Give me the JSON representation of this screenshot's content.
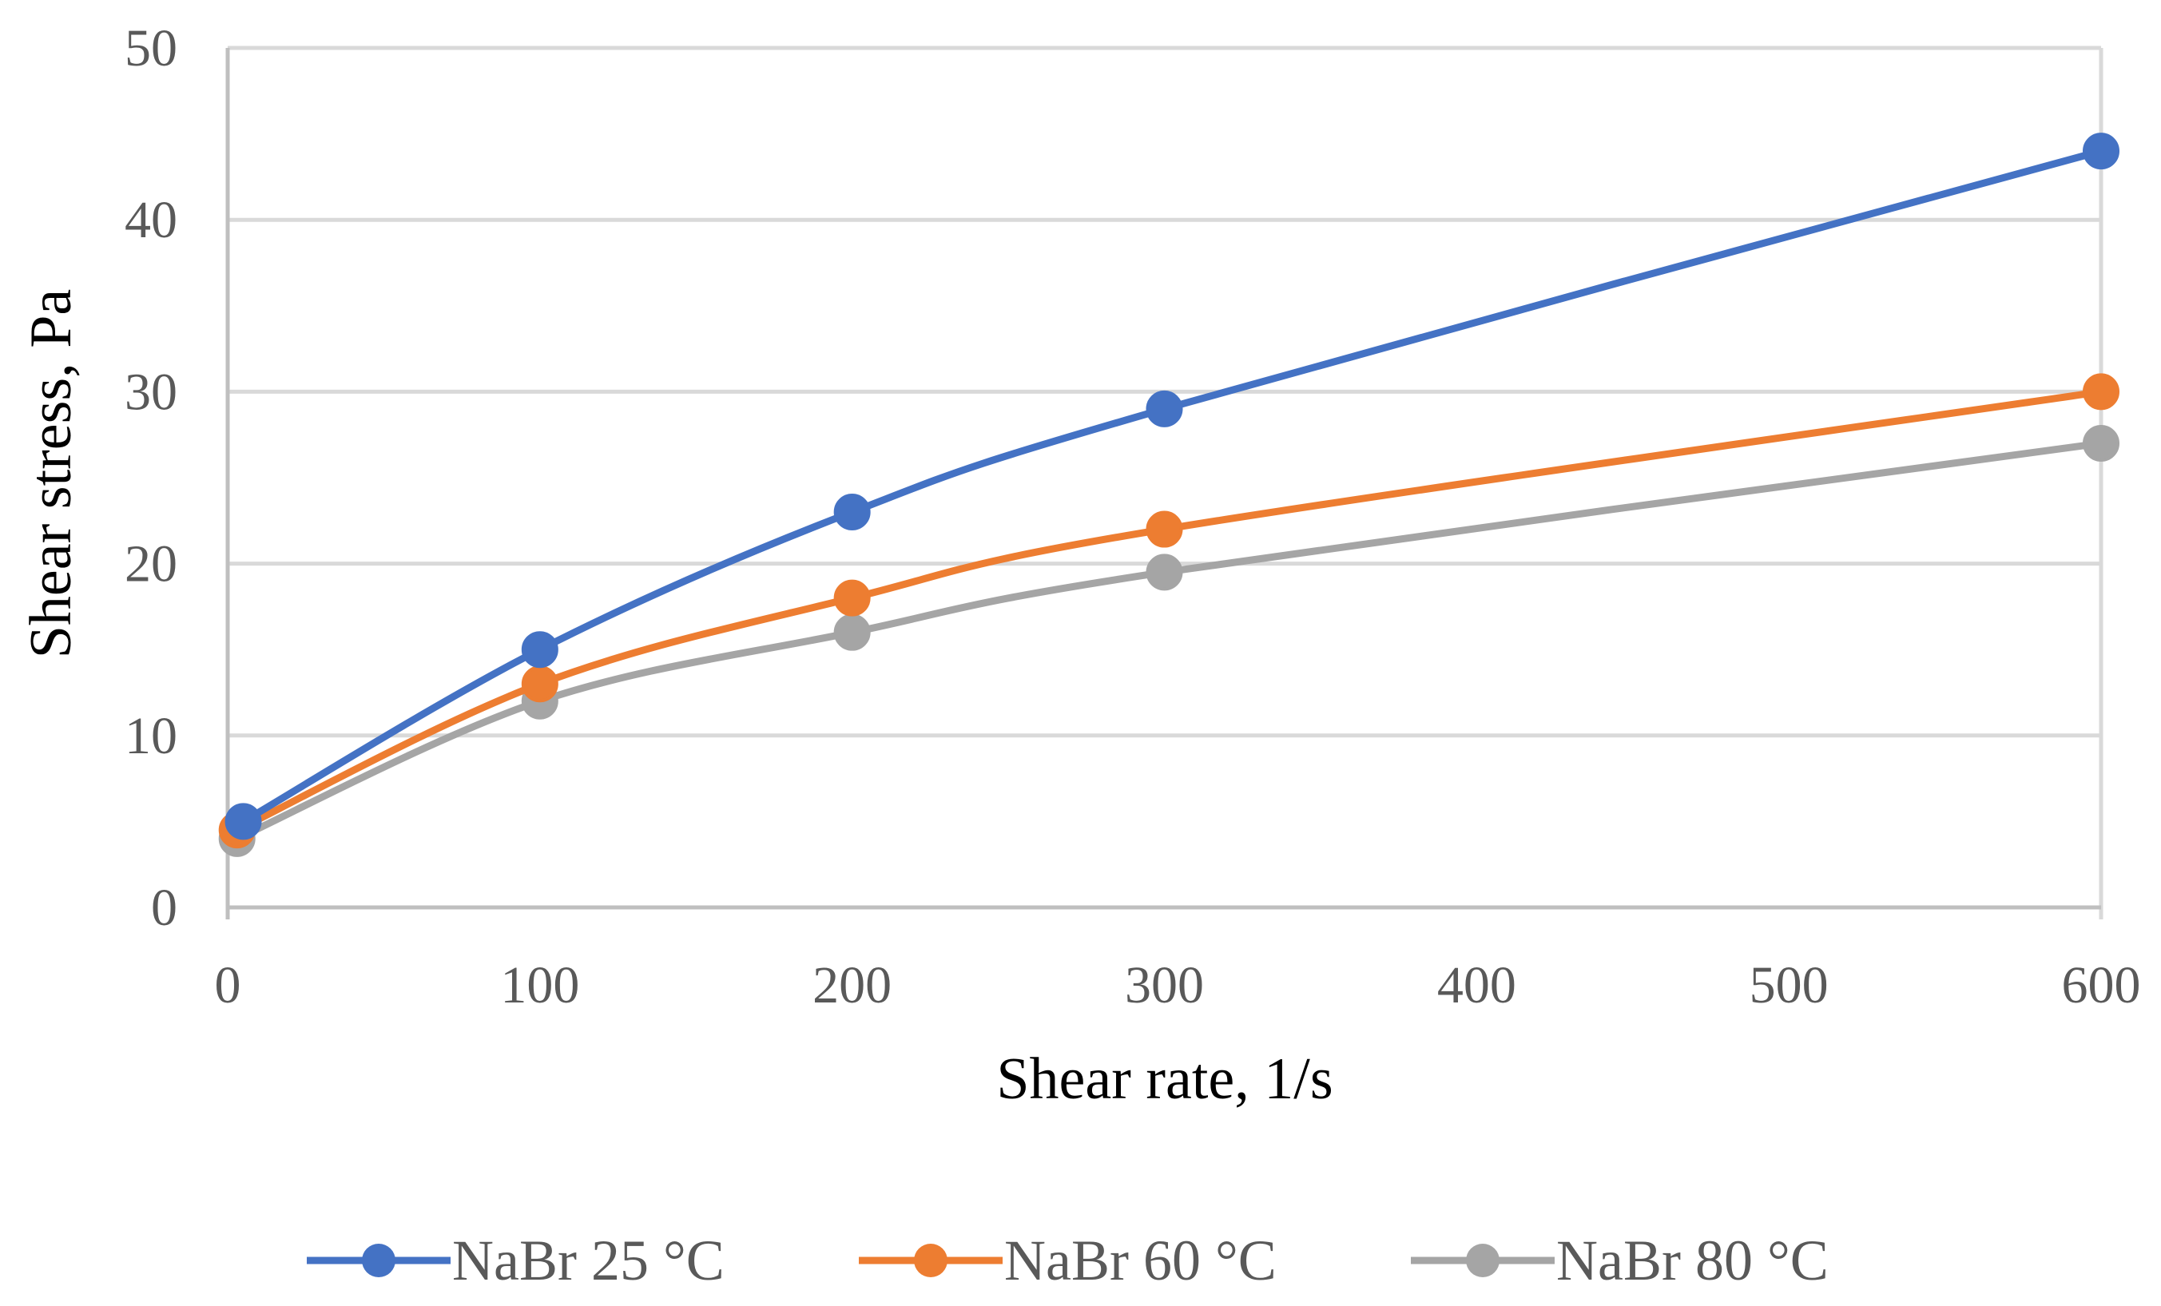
{
  "chart_data": {
    "type": "line",
    "title": "",
    "xlabel": "Shear rate, 1/s",
    "ylabel": "Shear stress, Pa",
    "xlim": [
      0,
      600
    ],
    "ylim": [
      0,
      50
    ],
    "x_ticks": [
      0,
      100,
      200,
      300,
      400,
      500,
      600
    ],
    "y_ticks": [
      0,
      10,
      20,
      30,
      40,
      50
    ],
    "grid": true,
    "legend_position": "bottom",
    "smooth": true,
    "series": [
      {
        "name": "NaBr 25 °C",
        "color": "#4472C4",
        "points": [
          [
            5,
            5
          ],
          [
            100,
            15
          ],
          [
            200,
            23
          ],
          [
            300,
            29
          ],
          [
            600,
            44
          ]
        ]
      },
      {
        "name": "NaBr 60 °C",
        "color": "#ED7D31",
        "points": [
          [
            3,
            4.5
          ],
          [
            100,
            13
          ],
          [
            200,
            18
          ],
          [
            300,
            22
          ],
          [
            600,
            30
          ]
        ]
      },
      {
        "name": "NaBr 80 °C",
        "color": "#A5A5A5",
        "points": [
          [
            3,
            4
          ],
          [
            100,
            12
          ],
          [
            200,
            16
          ],
          [
            300,
            19.5
          ],
          [
            600,
            27
          ]
        ]
      }
    ]
  }
}
